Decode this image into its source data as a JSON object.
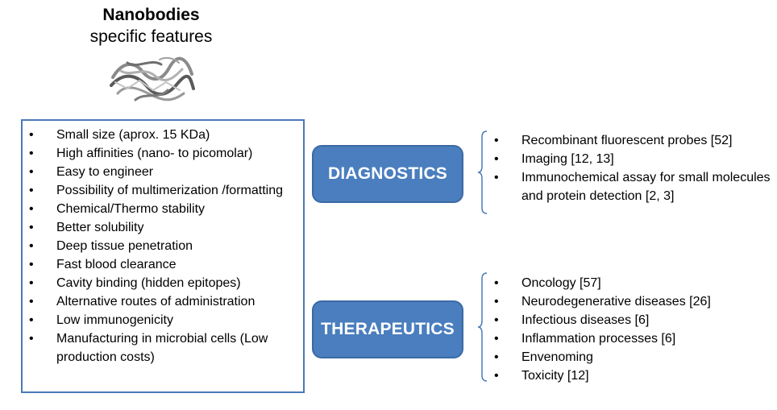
{
  "header": {
    "title": "Nanobodies",
    "subtitle": "specific features"
  },
  "features": [
    "Small size (aprox. 15 KDa)",
    "High affinities (nano- to picomolar)",
    "Easy to engineer",
    "Possibility of multimerization /formatting",
    "Chemical/Thermo stability",
    "Better solubility",
    "Deep tissue penetration",
    "Fast blood clearance",
    "Cavity binding (hidden epitopes)",
    "Alternative routes of administration",
    "Low immunogenicity",
    "Manufacturing in microbial cells (Low production costs)"
  ],
  "diagnostics": {
    "label": "DIAGNOSTICS",
    "items": [
      "Recombinant fluorescent probes [52]",
      "Imaging [12, 13]",
      "Immunochemical assay for small molecules and protein detection [2, 3]"
    ]
  },
  "therapeutics": {
    "label": "THERAPEUTICS",
    "items": [
      "Oncology [57]",
      "Neurodegenerative diseases [26]",
      "Infectious diseases [6]",
      "Inflammation processes  [6]",
      "Envenoming",
      "Toxicity [12]"
    ]
  },
  "colors": {
    "box_border": "#4a7ab8",
    "pill_fill": "#4a7ebe",
    "brace": "#4a7ab8"
  }
}
